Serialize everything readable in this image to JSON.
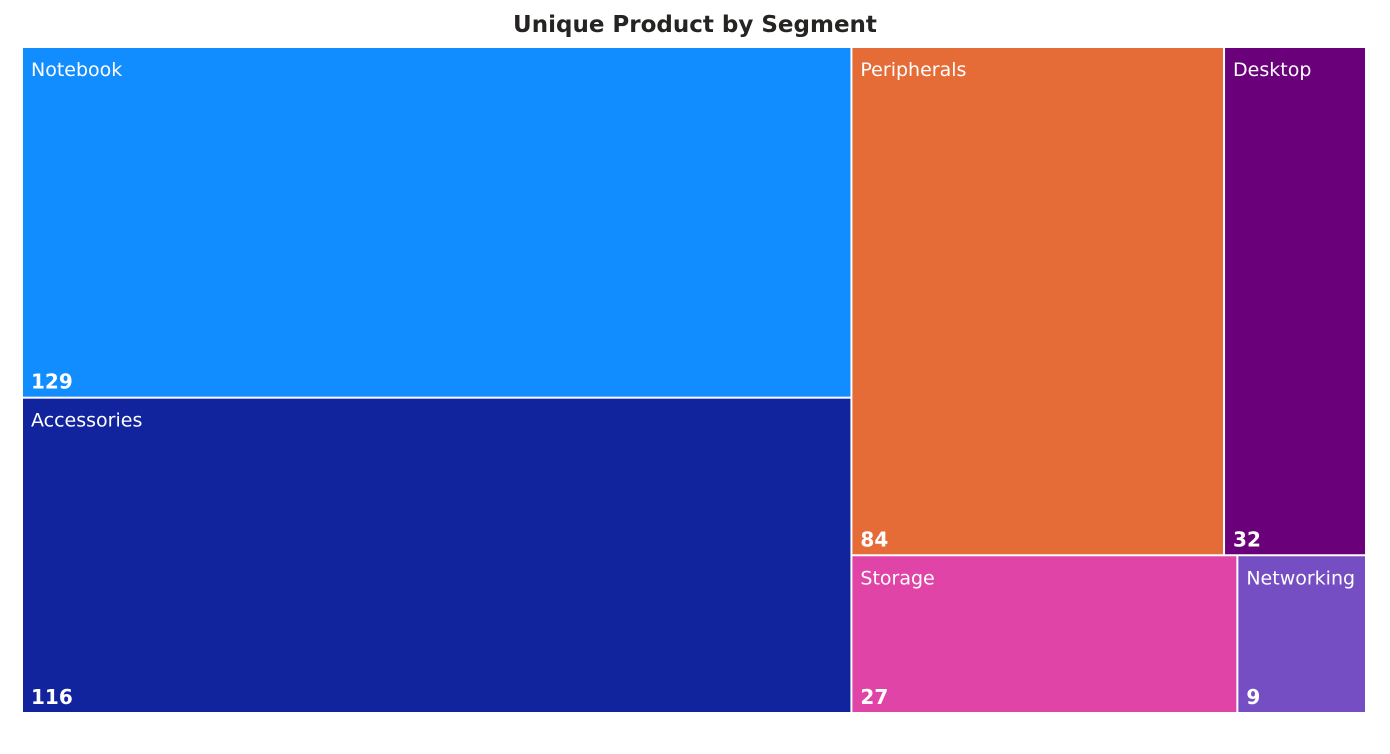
{
  "chart_data": {
    "type": "treemap",
    "title": "Unique Product by Segment",
    "items": [
      {
        "name": "Notebook",
        "value": 129,
        "color": "#118DFF"
      },
      {
        "name": "Accessories",
        "value": 116,
        "color": "#12239E"
      },
      {
        "name": "Peripherals",
        "value": 84,
        "color": "#E66C37"
      },
      {
        "name": "Desktop",
        "value": 32,
        "color": "#6B007B"
      },
      {
        "name": "Storage",
        "value": 27,
        "color": "#E044A7"
      },
      {
        "name": "Networking",
        "value": 9,
        "color": "#744EC2"
      }
    ]
  }
}
